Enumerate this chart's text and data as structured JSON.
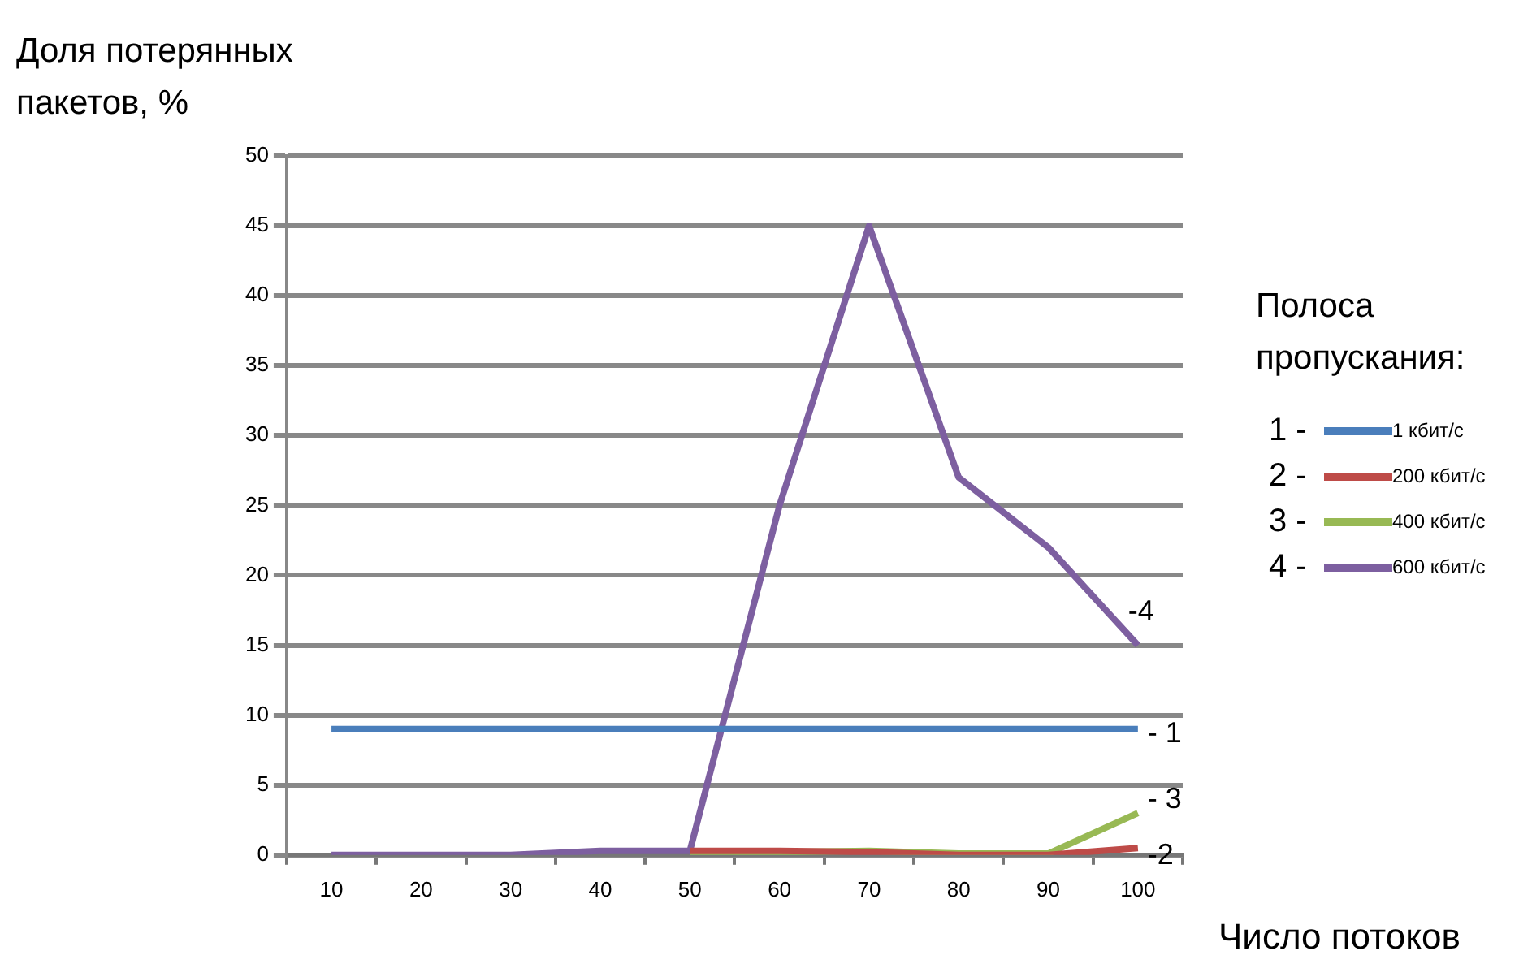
{
  "chart_data": {
    "type": "line",
    "ylabel": "Доля потерянных пакетов, %",
    "xlabel": "Число потоков",
    "legend_title": "Полоса пропускания:",
    "categories": [
      "10",
      "20",
      "30",
      "40",
      "50",
      "60",
      "70",
      "80",
      "90",
      "100"
    ],
    "series": [
      {
        "name": "1 кбит/с",
        "color": "#4a7ebb",
        "values": [
          9,
          9,
          9,
          9,
          9,
          9,
          9,
          9,
          9,
          9
        ]
      },
      {
        "name": "200 кбит/с",
        "color": "#be4b48",
        "values": [
          null,
          null,
          null,
          null,
          0.3,
          0.3,
          0.2,
          0,
          0,
          0.5
        ]
      },
      {
        "name": "400 кбит/с",
        "color": "#98b954",
        "values": [
          null,
          null,
          null,
          null,
          0,
          0.2,
          0.3,
          0.1,
          0.1,
          3
        ]
      },
      {
        "name": "600 кбит/с",
        "color": "#7d5fa0",
        "values": [
          0,
          0,
          0,
          0.3,
          0.3,
          25,
          45,
          27,
          22,
          15
        ]
      }
    ],
    "ylim": [
      0,
      50
    ],
    "yticks": [
      0,
      5,
      10,
      15,
      20,
      25,
      30,
      35,
      40,
      45,
      50
    ],
    "grid": "y",
    "legend": "right",
    "marker": "none",
    "line_style": "solid",
    "annotations": [
      {
        "text": "- 1",
        "x": "100",
        "y": 9
      },
      {
        "text": "-2",
        "x": "100",
        "y": 0.5
      },
      {
        "text": "- 3",
        "x": "100",
        "y": 3
      },
      {
        "text": "-4",
        "x": "100",
        "y": 15
      },
      "1 -",
      "2 -",
      "3 -",
      "4 -"
    ]
  }
}
